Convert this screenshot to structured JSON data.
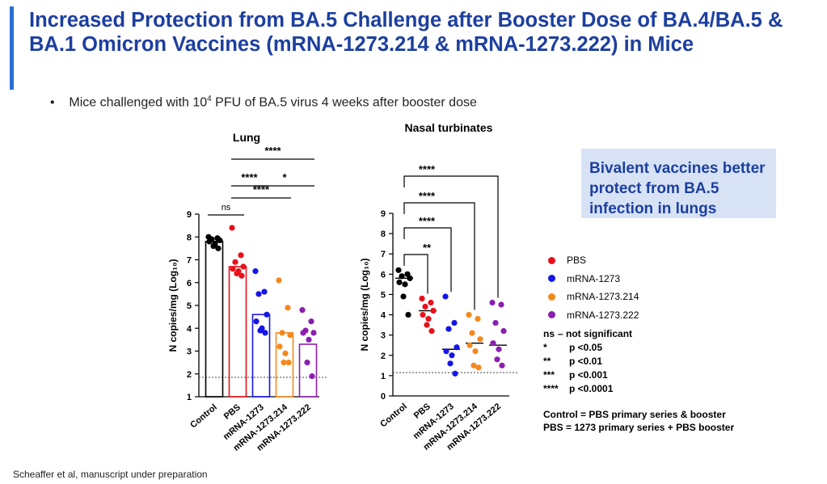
{
  "title": "Increased Protection from BA.5 Challenge after Booster Dose of BA.4/BA.5 & BA.1 Omicron Vaccines (mRNA-1273.214 & mRNA-1273.222) in Mice",
  "bullet": {
    "pre": "Mice challenged with 10",
    "sup": "4",
    "post": " PFU of BA.5 virus 4 weeks after booster dose"
  },
  "callout": "Bivalent vaccines better protect from BA.5 infection in lungs",
  "footer": "Scheaffer et al, manuscript under preparation",
  "colors": {
    "Control": "#000000",
    "PBS": "#e8101b",
    "mRNA-1273": "#1515e8",
    "mRNA-1273.214": "#f5891e",
    "mRNA-1273.222": "#8a1fb0"
  },
  "legend": [
    {
      "label": "PBS",
      "color": "#e8101b"
    },
    {
      "label": "mRNA-1273",
      "color": "#1515e8"
    },
    {
      "label": "mRNA-1273.214",
      "color": "#f5891e"
    },
    {
      "label": "mRNA-1273.222",
      "color": "#8a1fb0"
    }
  ],
  "significance_notes": [
    {
      "symbol": "ns",
      "text": "– not significant"
    },
    {
      "symbol": "*",
      "text": "p <0.05"
    },
    {
      "symbol": "**",
      "text": "p <0.01"
    },
    {
      "symbol": "***",
      "text": "p <0.001"
    },
    {
      "symbol": "****",
      "text": "p <0.0001"
    }
  ],
  "definitions": [
    "Control = PBS primary series & booster",
    "PBS = 1273 primary series + PBS booster"
  ],
  "chart_data": [
    {
      "type": "bar",
      "title": "Lung",
      "ylabel": "N copies/mg  (Log₁₀)",
      "ylim": [
        1,
        9
      ],
      "yticks": [
        1,
        2,
        3,
        4,
        5,
        6,
        7,
        8,
        9
      ],
      "limit_of_detection": 1.85,
      "categories": [
        "Control",
        "PBS",
        "mRNA-1273",
        "mRNA-1273.214",
        "mRNA-1273.222"
      ],
      "values": [
        7.8,
        6.7,
        4.6,
        3.8,
        3.3
      ],
      "points": [
        [
          8.0,
          7.95,
          7.9,
          7.85,
          7.8,
          7.7,
          7.6,
          7.5
        ],
        [
          8.4,
          7.2,
          6.9,
          6.7,
          6.6,
          6.5,
          6.4,
          6.3
        ],
        [
          6.5,
          5.6,
          5.5,
          4.6,
          4.3,
          4.0,
          3.9,
          3.8
        ],
        [
          6.1,
          4.9,
          3.8,
          3.7,
          3.2,
          2.9,
          2.5,
          2.5
        ],
        [
          4.8,
          4.3,
          3.9,
          3.8,
          3.8,
          3.5,
          2.5,
          1.9
        ]
      ],
      "comparisons": [
        {
          "from": 0,
          "to": 1,
          "label": "ns"
        },
        {
          "from": 1,
          "to": 3,
          "label": "****"
        },
        {
          "from": 1,
          "to": 2,
          "label": "****"
        },
        {
          "from": 2,
          "to": 4,
          "label": "*"
        },
        {
          "from": 1,
          "to": 4,
          "label": "****"
        }
      ]
    },
    {
      "type": "scatter",
      "title": "Nasal turbinates",
      "ylabel": "N copies/mg  (Log₁₀)",
      "ylim": [
        0,
        9
      ],
      "yticks": [
        0,
        1,
        2,
        3,
        4,
        5,
        6,
        7,
        8,
        9
      ],
      "limit_of_detection": 1.15,
      "categories": [
        "Control",
        "PBS",
        "mRNA-1273",
        "mRNA-1273.214",
        "mRNA-1273.222"
      ],
      "medians": [
        5.8,
        4.2,
        2.3,
        2.6,
        2.5
      ],
      "points": [
        [
          6.2,
          6.0,
          5.9,
          5.8,
          5.6,
          5.5,
          4.9,
          4.0
        ],
        [
          4.8,
          4.6,
          4.4,
          4.2,
          4.0,
          3.8,
          3.5,
          3.2
        ],
        [
          4.9,
          3.6,
          3.3,
          2.4,
          2.2,
          2.0,
          1.6,
          1.1
        ],
        [
          4.0,
          3.8,
          3.1,
          2.8,
          2.5,
          2.2,
          1.5,
          1.4
        ],
        [
          4.6,
          4.5,
          3.6,
          3.2,
          2.6,
          2.3,
          1.8,
          1.5
        ]
      ],
      "comparisons": [
        {
          "from": 0,
          "to": 1,
          "label": "**"
        },
        {
          "from": 0,
          "to": 2,
          "label": "****"
        },
        {
          "from": 0,
          "to": 3,
          "label": "****"
        },
        {
          "from": 0,
          "to": 4,
          "label": "****"
        }
      ]
    }
  ]
}
